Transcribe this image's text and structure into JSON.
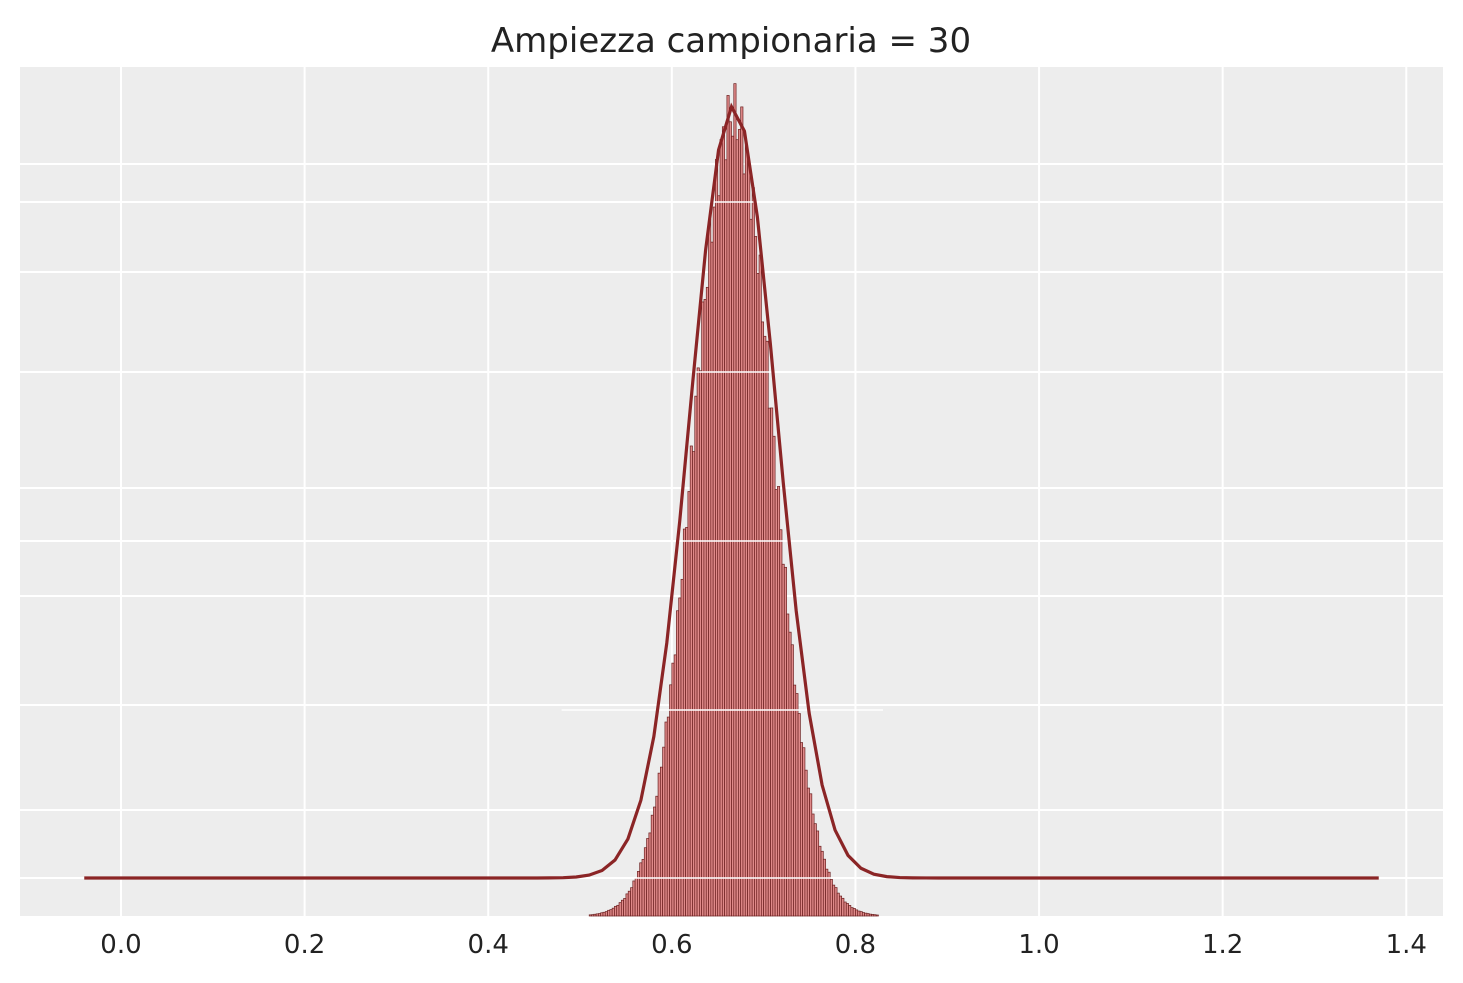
{
  "chart_data": {
    "type": "histogram",
    "title": "Ampiezza campionaria = 30",
    "xlabel": "",
    "ylabel": "",
    "xlim": [
      -0.11,
      1.44
    ],
    "x_ticks": [
      0.0,
      0.2,
      0.4,
      0.6,
      0.8,
      1.0,
      1.2,
      1.4
    ],
    "x_tick_labels": [
      "0.0",
      "0.2",
      "0.4",
      "0.6",
      "0.8",
      "1.0",
      "1.2",
      "1.4"
    ],
    "y_ticks_shown": false,
    "grid": true,
    "background": "#ededed",
    "histogram": {
      "color_fill": "#e08a8a",
      "color_edge": "#6b1f1f",
      "mean": 0.667,
      "sd": 0.043,
      "range": [
        0.48,
        0.83
      ],
      "bin_width": 0.0025
    },
    "density_line": {
      "color": "#8b2526",
      "x_range": [
        -0.04,
        1.37
      ],
      "peak_x": 0.667
    }
  }
}
